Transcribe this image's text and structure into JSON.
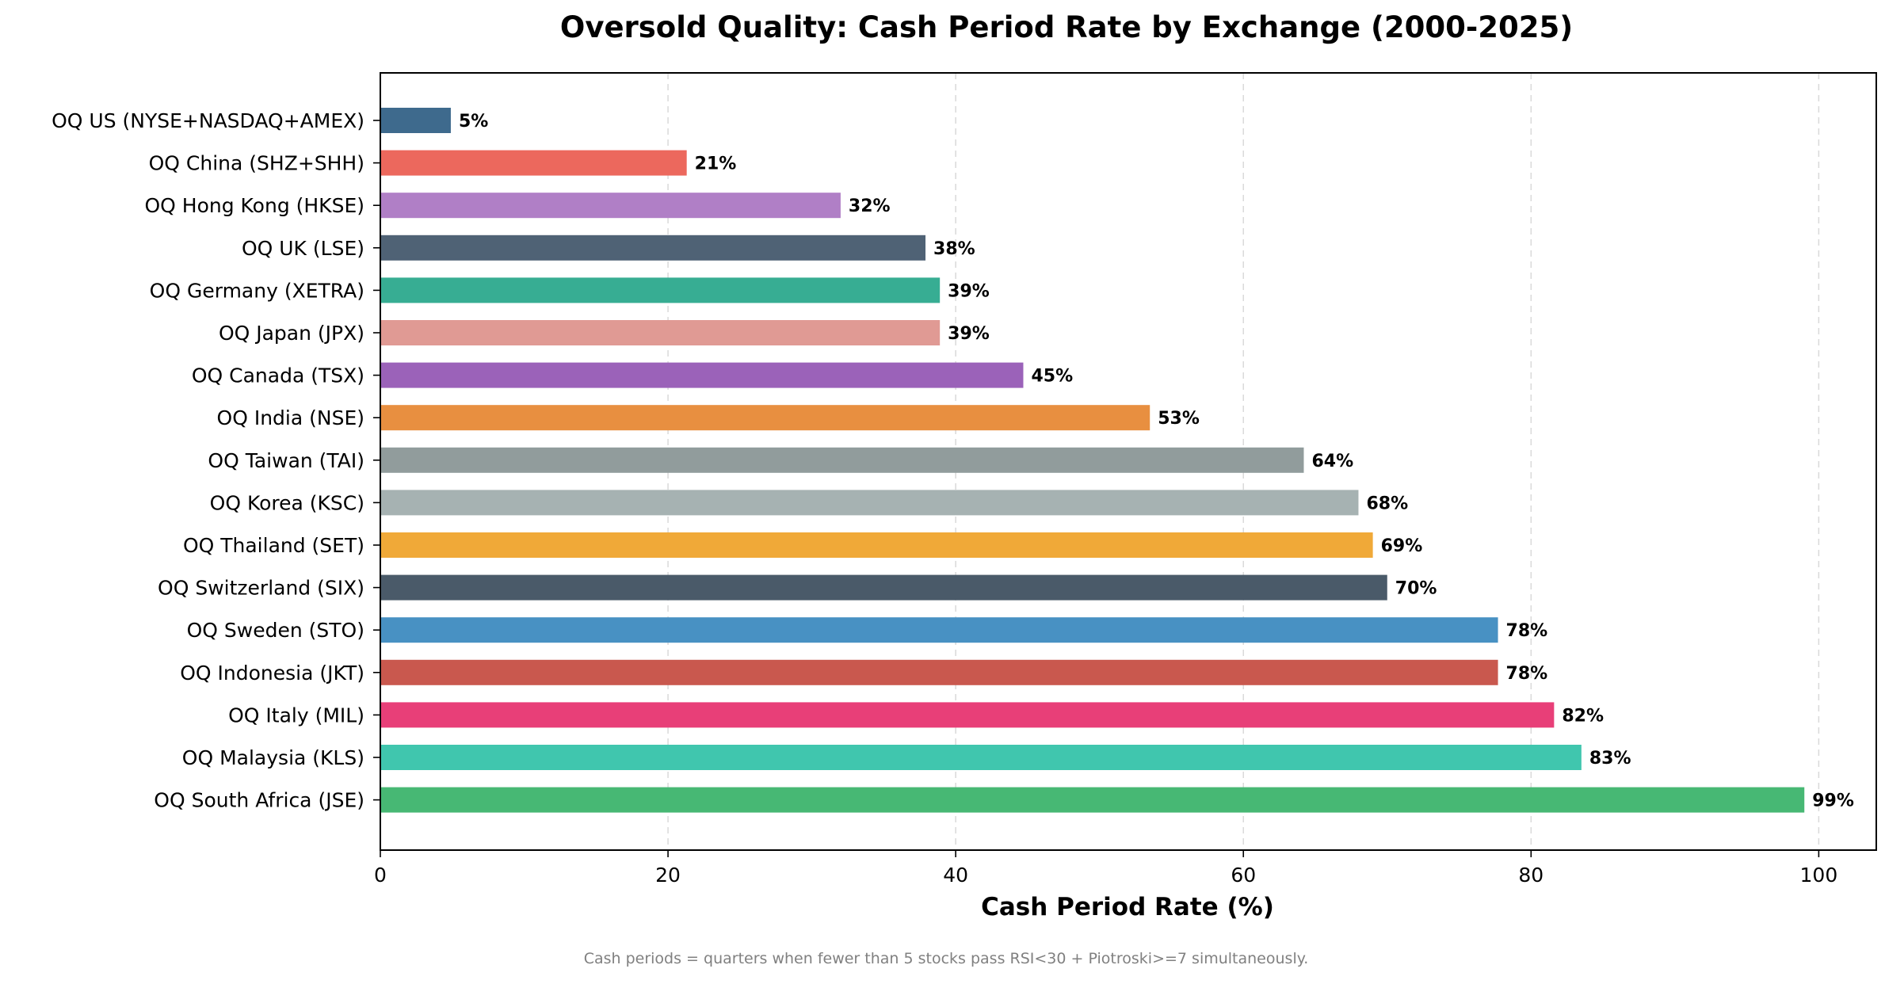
{
  "chart_data": {
    "type": "bar",
    "orientation": "horizontal",
    "title": "Oversold Quality: Cash Period Rate by Exchange (2000-2025)",
    "xlabel": "Cash Period Rate (%)",
    "ylabel": "",
    "xlim": [
      0,
      104
    ],
    "xticks": [
      0,
      20,
      40,
      60,
      80,
      100
    ],
    "grid": "x-dashed",
    "value_label_suffix": "%",
    "footnote": "Cash periods = quarters when fewer than 5 stocks pass RSI<30 + Piotroski>=7 simultaneously.",
    "categories": [
      "OQ US (NYSE+NASDAQ+AMEX)",
      "OQ China (SHZ+SHH)",
      "OQ Hong Kong (HKSE)",
      "OQ UK (LSE)",
      "OQ Germany (XETRA)",
      "OQ Japan (JPX)",
      "OQ Canada (TSX)",
      "OQ India (NSE)",
      "OQ Taiwan (TAI)",
      "OQ Korea (KSC)",
      "OQ Thailand (SET)",
      "OQ Switzerland (SIX)",
      "OQ Sweden (STO)",
      "OQ Indonesia (JKT)",
      "OQ Italy (MIL)",
      "OQ Malaysia (KLS)",
      "OQ South Africa (JSE)"
    ],
    "values": [
      4.9,
      21.3,
      32.0,
      37.9,
      38.9,
      38.9,
      44.7,
      53.5,
      64.2,
      68.0,
      69.0,
      70.0,
      77.7,
      77.7,
      81.6,
      83.5,
      99.0
    ],
    "labels": [
      "5%",
      "21%",
      "32%",
      "38%",
      "39%",
      "39%",
      "45%",
      "53%",
      "64%",
      "68%",
      "69%",
      "70%",
      "78%",
      "78%",
      "82%",
      "83%",
      "99%"
    ],
    "colors": [
      "#3e6a8d",
      "#ec685d",
      "#b07fc6",
      "#4f6275",
      "#37ad93",
      "#e09a94",
      "#9b62b9",
      "#e88f40",
      "#919c9c",
      "#a6b2b2",
      "#f0a938",
      "#4a5a69",
      "#4891c3",
      "#c9584e",
      "#e83f78",
      "#40c6ae",
      "#47b874"
    ]
  }
}
